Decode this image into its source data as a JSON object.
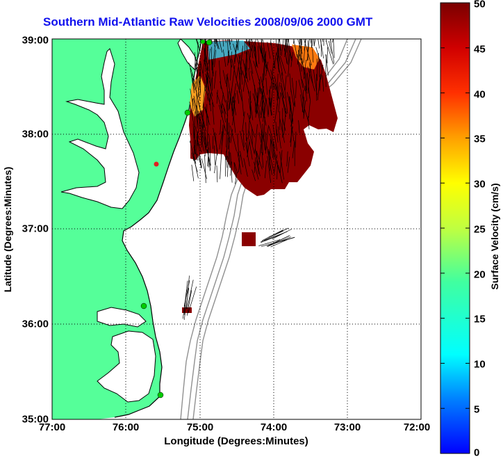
{
  "title": "Southern Mid-Atlantic Raw Velocities 2008/09/06 2000 GMT",
  "x_axis": {
    "label": "Longitude (Degrees:Minutes)",
    "ticks": [
      "77:00",
      "76:00",
      "75:00",
      "74:00",
      "73:00",
      "72:00"
    ]
  },
  "y_axis": {
    "label": "Latitude (Degrees:Minutes)",
    "ticks": [
      "39:00",
      "38:00",
      "37:00",
      "36:00",
      "35:00"
    ]
  },
  "colorbar": {
    "label": "Surface Velocity (cm/s)",
    "ticks": [
      "50",
      "45",
      "40",
      "35",
      "30",
      "25",
      "20",
      "15",
      "10",
      "5",
      "0"
    ],
    "min": 0,
    "max": 50,
    "scale": "jet"
  },
  "map": {
    "lon_range": [
      -77,
      -72
    ],
    "lat_range": [
      35,
      39
    ],
    "grid": true,
    "land_color": "#55ff99",
    "coastline_color": "#000000",
    "bathymetry_color": "#909090",
    "velocity_fill": "#8a0000",
    "vector_color": "#000000",
    "station_color": "#00cc00"
  }
}
